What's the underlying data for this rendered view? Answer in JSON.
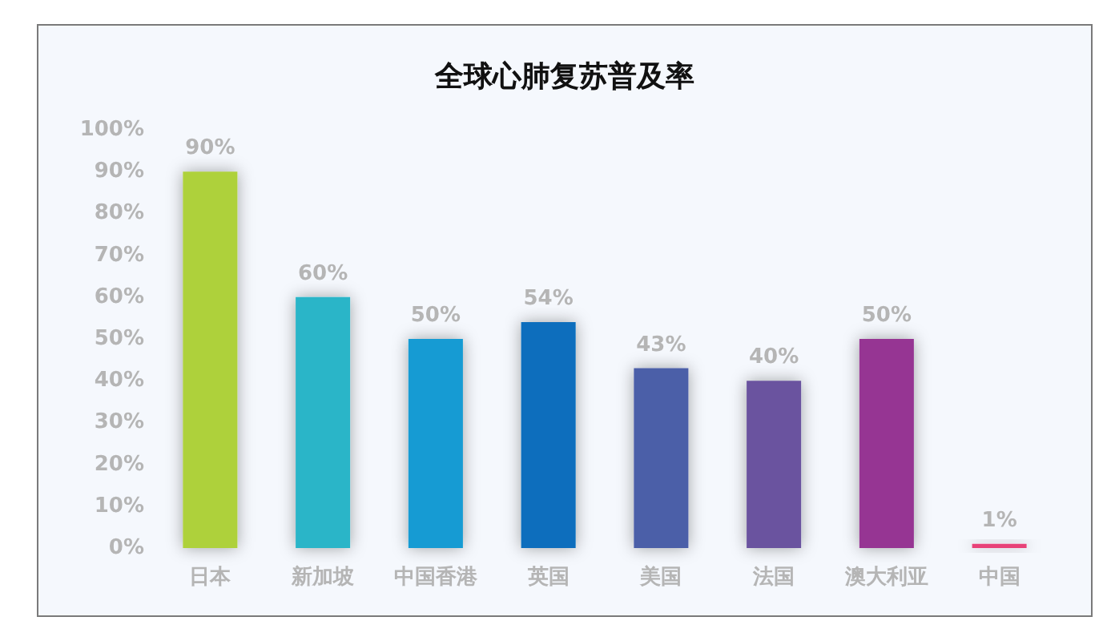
{
  "chart_data": {
    "type": "bar",
    "title": "全球心肺复苏普及率",
    "categories": [
      "日本",
      "新加坡",
      "中国香港",
      "英国",
      "美国",
      "法国",
      "澳大利亚",
      "中国"
    ],
    "values": [
      90,
      60,
      50,
      54,
      43,
      40,
      50,
      1
    ],
    "value_labels": [
      "90%",
      "60%",
      "50%",
      "54%",
      "43%",
      "40%",
      "50%",
      "1%"
    ],
    "colors": [
      "#aed13a",
      "#2ab5c8",
      "#149bd3",
      "#0a6ebd",
      "#4b5ea8",
      "#6a529f",
      "#963493",
      "#e84378"
    ],
    "ylim": [
      0,
      100
    ],
    "yticks": [
      {
        "value": 0,
        "label": "0%"
      },
      {
        "value": 10,
        "label": "10%"
      },
      {
        "value": 20,
        "label": "20%"
      },
      {
        "value": 30,
        "label": "30%"
      },
      {
        "value": 40,
        "label": "40%"
      },
      {
        "value": 50,
        "label": "50%"
      },
      {
        "value": 60,
        "label": "60%"
      },
      {
        "value": 70,
        "label": "70%"
      },
      {
        "value": 80,
        "label": "80%"
      },
      {
        "value": 90,
        "label": "90%"
      },
      {
        "value": 100,
        "label": "100%"
      }
    ],
    "grid": false
  }
}
